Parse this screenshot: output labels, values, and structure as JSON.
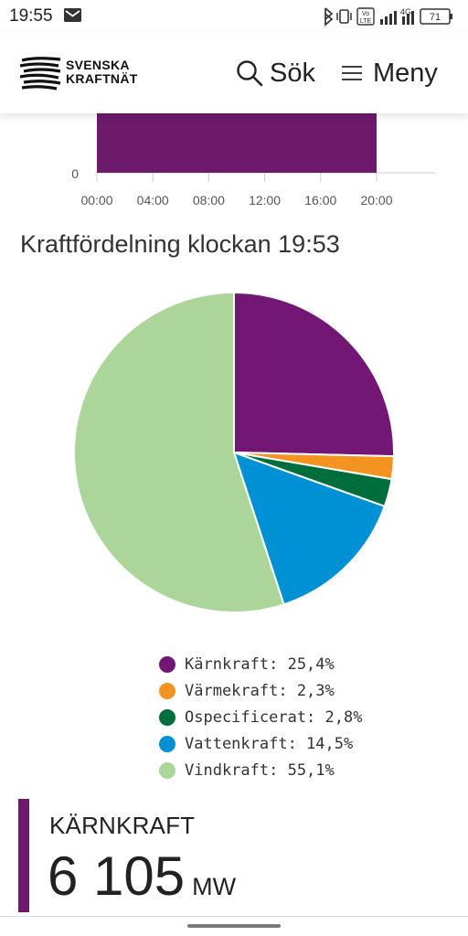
{
  "status_bar": {
    "time": "19:55",
    "battery": "71",
    "network": "4G",
    "volte": "Vo LTE"
  },
  "header": {
    "logo_line1": "SVENSKA",
    "logo_line2": "KRAFTNÄT",
    "search_label": "Sök",
    "menu_label": "Meny"
  },
  "bar_chart": {
    "type": "bar",
    "y_tick_label": "0",
    "x_tick_labels": [
      "00:00",
      "04:00",
      "08:00",
      "12:00",
      "16:00",
      "20:00"
    ],
    "bar_color": "#6d1a6d"
  },
  "section_title": "Kraftfördelning klockan 19:53",
  "chart_data": {
    "type": "pie",
    "title": "Kraftfördelning klockan 19:53",
    "slices": [
      {
        "label": "Kärnkraft",
        "value": 25.4,
        "color": "#731774"
      },
      {
        "label": "Värmekraft",
        "value": 2.3,
        "color": "#f39321"
      },
      {
        "label": "Ospecificerat",
        "value": 2.8,
        "color": "#006d3c"
      },
      {
        "label": "Vattenkraft",
        "value": 14.5,
        "color": "#0090d4"
      },
      {
        "label": "Vindkraft",
        "value": 55.1,
        "color": "#acd59a"
      }
    ],
    "legend": "bottom"
  },
  "legend_items": [
    {
      "text": "Kärnkraft: 25,4%",
      "color": "#731774"
    },
    {
      "text": "Värmekraft: 2,3%",
      "color": "#f39321"
    },
    {
      "text": "Ospecificerat: 2,8%",
      "color": "#006d3c"
    },
    {
      "text": "Vattenkraft: 14,5%",
      "color": "#0090d4"
    },
    {
      "text": "Vindkraft: 55,1%",
      "color": "#acd59a"
    }
  ],
  "kpi": {
    "title": "KÄRNKRAFT",
    "value": "6 105",
    "unit": "MW",
    "accent_color": "#6d1a6d"
  }
}
